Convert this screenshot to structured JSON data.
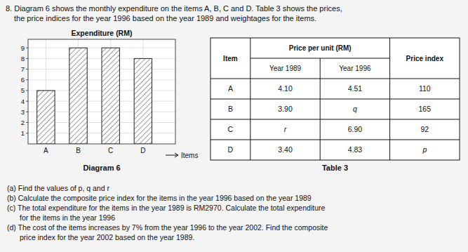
{
  "intro": [
    "8. Diagram 6 shows the monthly expenditure on the items A, B, C and D. Table 3 shows the prices,",
    "the price indices for the year 1996 based on the year 1989 and weightages for the items."
  ],
  "chart_data": {
    "type": "bar",
    "title": "Expenditure (RM)",
    "x_label": "Items",
    "categories": [
      "A",
      "B",
      "C",
      "D"
    ],
    "values": [
      5,
      9,
      9,
      8
    ],
    "color": "white",
    "ylim": [
      0,
      9.8
    ],
    "yticks": [
      1,
      2,
      3,
      4,
      5,
      6,
      7,
      8,
      9
    ],
    "grid": true
  },
  "chart_caption": "Diagram 6",
  "table": {
    "columns": [
      "Item",
      "Price per unit (RM)",
      "Price index"
    ],
    "subcolumns": [
      "Year 1989",
      "Year 1996"
    ],
    "rows": [
      [
        "A",
        "4.10",
        "4.51",
        "110"
      ],
      [
        "B",
        "3.90",
        "q",
        "165"
      ],
      [
        "C",
        "r",
        "6.90",
        "92"
      ],
      [
        "D",
        "3.40",
        "4.83",
        "p"
      ]
    ],
    "caption": "Table 3"
  },
  "questions": [
    "(a) Find the values of p, q and r",
    "(b) Calculate the composite price index for the items in the year 1996 based on the year 1989",
    "(c) The total expenditure for the items in the year 1989 is RM2970. Calculate the total expenditure",
    "for the items in the year 1996",
    "(d) The cost of the items increases by 7% from the year 1996 to the year 2002. Find the composite",
    "price index for the year 2002 based on the year 1989."
  ]
}
